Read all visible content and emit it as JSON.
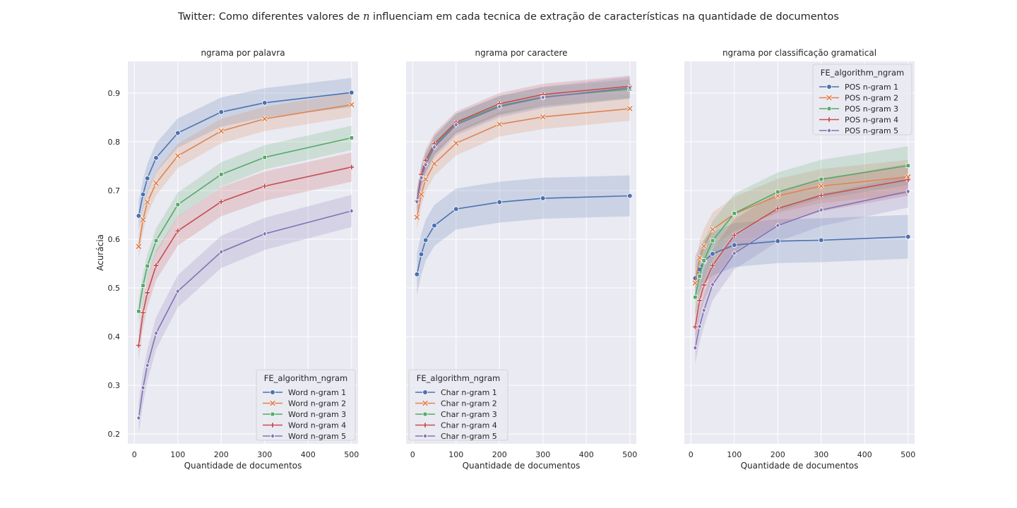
{
  "figure": {
    "suptitle_prefix": "Twitter: Como diferentes valores de ",
    "suptitle_var": "n",
    "suptitle_suffix": " influenciam em cada tecnica de extração de características na quantidade de documentos"
  },
  "palette": {
    "ngram1": "#4c72b0",
    "ngram2": "#dd8452",
    "ngram3": "#55a868",
    "ngram4": "#c44e52",
    "ngram5": "#8172b3",
    "axes_bg": "#eaeaf2",
    "grid": "#ffffff"
  },
  "chart_data": [
    {
      "type": "line",
      "title": "ngrama por palavra",
      "xlabel": "Quantidade de documentos",
      "ylabel": "Acurácia",
      "xlim": [
        -15,
        515
      ],
      "ylim": [
        0.18,
        0.965
      ],
      "xticks": [
        0,
        100,
        200,
        300,
        400,
        500
      ],
      "yticks": [
        0.2,
        0.3,
        0.4,
        0.5,
        0.6,
        0.7,
        0.8,
        0.9
      ],
      "grid": true,
      "legend": {
        "title": "FE_algorithm_ngram",
        "placement": "lower-right"
      },
      "x": [
        10,
        20,
        30,
        50,
        100,
        200,
        300,
        500
      ],
      "series": [
        {
          "name": "Word n-gram 1",
          "marker": "circle",
          "values": [
            0.648,
            0.692,
            0.725,
            0.767,
            0.818,
            0.861,
            0.88,
            0.901
          ],
          "ci": 0.03
        },
        {
          "name": "Word n-gram 2",
          "marker": "x",
          "values": [
            0.585,
            0.64,
            0.676,
            0.715,
            0.771,
            0.822,
            0.847,
            0.876
          ],
          "ci": 0.025
        },
        {
          "name": "Word n-gram 3",
          "marker": "square",
          "values": [
            0.452,
            0.505,
            0.545,
            0.597,
            0.671,
            0.733,
            0.768,
            0.808
          ],
          "ci": 0.025
        },
        {
          "name": "Word n-gram 4",
          "marker": "plus",
          "values": [
            0.382,
            0.449,
            0.49,
            0.546,
            0.617,
            0.677,
            0.709,
            0.748
          ],
          "ci": 0.03
        },
        {
          "name": "Word n-gram 5",
          "marker": "diamond",
          "values": [
            0.233,
            0.295,
            0.341,
            0.407,
            0.493,
            0.574,
            0.611,
            0.658
          ],
          "ci": 0.033
        }
      ]
    },
    {
      "type": "line",
      "title": "ngrama por caractere",
      "xlabel": "Quantidade de documentos",
      "ylabel": "",
      "xlim": [
        -15,
        515
      ],
      "ylim": [
        0.18,
        0.965
      ],
      "xticks": [
        0,
        100,
        200,
        300,
        400,
        500
      ],
      "yticks": [],
      "grid": true,
      "legend": {
        "title": "FE_algorithm_ngram",
        "placement": "lower-left"
      },
      "x": [
        10,
        20,
        30,
        50,
        100,
        200,
        300,
        500
      ],
      "series": [
        {
          "name": "Char n-gram 1",
          "marker": "circle",
          "values": [
            0.528,
            0.569,
            0.598,
            0.628,
            0.662,
            0.676,
            0.684,
            0.689
          ],
          "ci": 0.042
        },
        {
          "name": "Char n-gram 2",
          "marker": "x",
          "values": [
            0.645,
            0.692,
            0.723,
            0.755,
            0.797,
            0.836,
            0.851,
            0.868
          ],
          "ci": 0.025
        },
        {
          "name": "Char n-gram 3",
          "marker": "square",
          "values": [
            0.678,
            0.73,
            0.757,
            0.792,
            0.838,
            0.874,
            0.892,
            0.908
          ],
          "ci": 0.02
        },
        {
          "name": "Char n-gram 4",
          "marker": "plus",
          "values": [
            0.679,
            0.733,
            0.762,
            0.796,
            0.84,
            0.878,
            0.897,
            0.914
          ],
          "ci": 0.022
        },
        {
          "name": "Char n-gram 5",
          "marker": "diamond",
          "values": [
            0.677,
            0.726,
            0.753,
            0.789,
            0.835,
            0.872,
            0.891,
            0.911
          ],
          "ci": 0.022
        }
      ]
    },
    {
      "type": "line",
      "title": "ngrama por classificação gramatical",
      "xlabel": "Quantidade de documentos",
      "ylabel": "",
      "xlim": [
        -15,
        515
      ],
      "ylim": [
        0.18,
        0.965
      ],
      "xticks": [
        0,
        100,
        200,
        300,
        400,
        500
      ],
      "yticks": [],
      "grid": true,
      "legend": {
        "title": "FE_algorithm_ngram",
        "placement": "top-right"
      },
      "x": [
        10,
        20,
        30,
        50,
        100,
        200,
        300,
        500
      ],
      "series": [
        {
          "name": "POS n-gram 1",
          "marker": "circle",
          "values": [
            0.52,
            0.538,
            0.555,
            0.57,
            0.588,
            0.596,
            0.598,
            0.605
          ],
          "ci": 0.045
        },
        {
          "name": "POS n-gram 2",
          "marker": "x",
          "values": [
            0.51,
            0.562,
            0.586,
            0.62,
            0.652,
            0.689,
            0.709,
            0.728
          ],
          "ci": 0.035
        },
        {
          "name": "POS n-gram 3",
          "marker": "square",
          "values": [
            0.481,
            0.524,
            0.556,
            0.597,
            0.653,
            0.697,
            0.723,
            0.751
          ],
          "ci": 0.04
        },
        {
          "name": "POS n-gram 4",
          "marker": "plus",
          "values": [
            0.42,
            0.474,
            0.506,
            0.546,
            0.608,
            0.663,
            0.69,
            0.722
          ],
          "ci": 0.033
        },
        {
          "name": "POS n-gram 5",
          "marker": "diamond",
          "values": [
            0.377,
            0.421,
            0.454,
            0.507,
            0.571,
            0.628,
            0.66,
            0.698
          ],
          "ci": 0.033
        }
      ]
    }
  ]
}
